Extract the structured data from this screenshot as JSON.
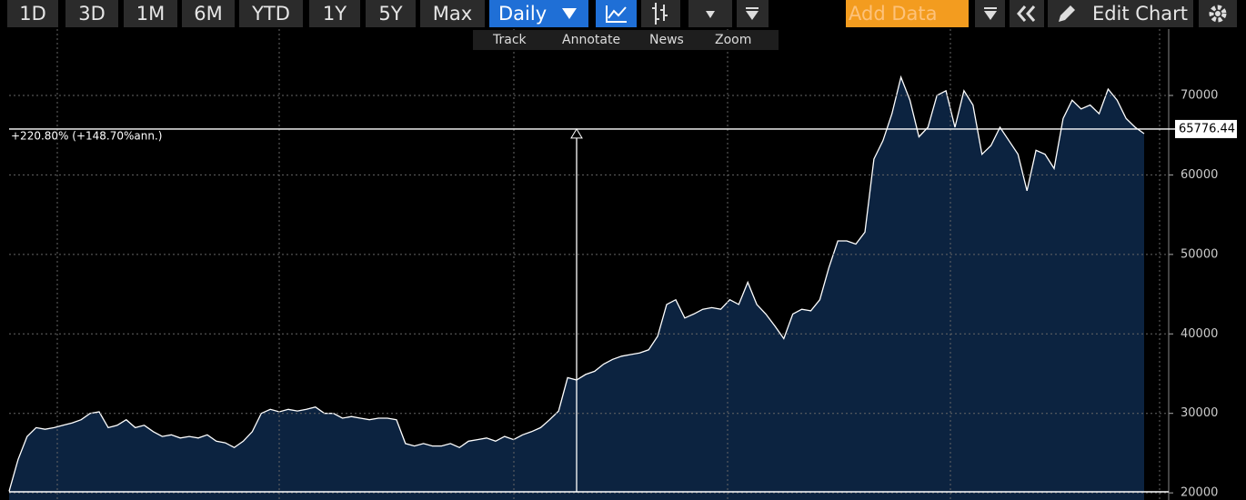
{
  "toolbar": {
    "ranges": [
      "1D",
      "3D",
      "1M",
      "6M",
      "YTD",
      "1Y",
      "5Y",
      "Max"
    ],
    "period": "Daily",
    "add_data": "Add Data",
    "edit": "Edit Chart"
  },
  "subtoolbar": [
    "Track",
    "Annotate",
    "News",
    "Zoom"
  ],
  "chart_data": {
    "type": "area",
    "color": "#0c2340",
    "line_color": "#ffffff",
    "values": [
      20200,
      24200,
      27100,
      28200,
      28000,
      28200,
      28500,
      28800,
      29200,
      30000,
      30200,
      28200,
      28500,
      29200,
      28200,
      28500,
      27700,
      27100,
      27300,
      26900,
      27100,
      26900,
      27300,
      26500,
      26300,
      25700,
      26500,
      27700,
      30000,
      30500,
      30200,
      30500,
      30300,
      30500,
      30800,
      30000,
      30000,
      29400,
      29600,
      29400,
      29200,
      29400,
      29400,
      29200,
      26200,
      25900,
      26200,
      25900,
      25900,
      26200,
      25700,
      26500,
      26700,
      26900,
      26500,
      27100,
      26700,
      27300,
      27700,
      28200,
      29200,
      30300,
      34500,
      34200,
      34900,
      35300,
      36200,
      36800,
      37200,
      37400,
      37600,
      38000,
      39700,
      43700,
      44300,
      42000,
      42500,
      43100,
      43300,
      43100,
      44300,
      43700,
      46500,
      43700,
      42500,
      41000,
      39400,
      42500,
      43100,
      42900,
      44300,
      48300,
      51700,
      51700,
      51300,
      52800,
      62000,
      64300,
      67700,
      72300,
      69400,
      64800,
      66000,
      70000,
      70600,
      66000,
      70600,
      68800,
      62600,
      63700,
      66000,
      64300,
      62600,
      58000,
      63100,
      62600,
      60800,
      67100,
      69400,
      68300,
      68800,
      67700,
      70800,
      69400,
      67100,
      66000,
      65200
    ],
    "ylim": [
      19100,
      78350
    ],
    "yticks": [
      20000,
      30000,
      40000,
      50000,
      60000,
      70000
    ],
    "grid": true,
    "annotation": "+220.80% (+148.70%ann.)",
    "last_value": 65776.44
  }
}
